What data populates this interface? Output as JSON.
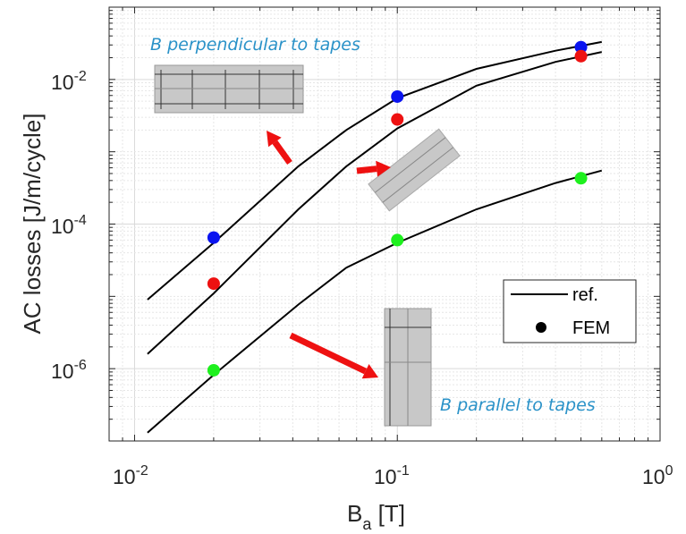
{
  "chart_data": {
    "type": "line",
    "xscale": "log",
    "yscale": "log",
    "xlim": [
      0.008,
      1
    ],
    "ylim": [
      1e-07,
      0.1
    ],
    "grid": true,
    "xlabel": "B_a [T]",
    "xlabel_main": "B",
    "xlabel_sub": "a",
    "xlabel_unit": " [T]",
    "ylabel": "AC losses [J/m/cycle]",
    "x_ticks": [
      {
        "base": "10",
        "exp": "-2",
        "value": 0.01
      },
      {
        "base": "10",
        "exp": "-1",
        "value": 0.1
      },
      {
        "base": "10",
        "exp": "0",
        "value": 1
      }
    ],
    "y_ticks": [
      {
        "base": "10",
        "exp": "-6",
        "value": 1e-06
      },
      {
        "base": "10",
        "exp": "-4",
        "value": 0.0001
      },
      {
        "base": "10",
        "exp": "-2",
        "value": 0.01
      }
    ],
    "ref_lines": [
      {
        "color": "#000000",
        "points": [
          [
            0.0112,
            9e-06
          ],
          [
            0.02,
            5.5e-05
          ],
          [
            0.042,
            0.00063
          ],
          [
            0.064,
            0.002
          ],
          [
            0.1,
            0.0055
          ],
          [
            0.2,
            0.014
          ],
          [
            0.4,
            0.025
          ],
          [
            0.6,
            0.033
          ]
        ]
      },
      {
        "color": "#000000",
        "points": [
          [
            0.0112,
            1.6e-06
          ],
          [
            0.02,
            1.1e-05
          ],
          [
            0.042,
            0.00016
          ],
          [
            0.064,
            0.00063
          ],
          [
            0.1,
            0.0021
          ],
          [
            0.2,
            0.0082
          ],
          [
            0.4,
            0.0175
          ],
          [
            0.6,
            0.024
          ]
        ]
      },
      {
        "color": "#000000",
        "points": [
          [
            0.0112,
            1.3e-07
          ],
          [
            0.02,
            8.2e-07
          ],
          [
            0.042,
            7.7e-06
          ],
          [
            0.064,
            2.5e-05
          ],
          [
            0.1,
            5.5e-05
          ],
          [
            0.2,
            0.00016
          ],
          [
            0.4,
            0.00037
          ],
          [
            0.6,
            0.00055
          ]
        ]
      }
    ],
    "fem_points": [
      {
        "color": "#0a14f0",
        "points": [
          [
            0.02,
            6.5e-05
          ],
          [
            0.1,
            0.0058
          ],
          [
            0.5,
            0.028
          ]
        ]
      },
      {
        "color": "#ee1111",
        "points": [
          [
            0.02,
            1.5e-05
          ],
          [
            0.1,
            0.0028
          ],
          [
            0.5,
            0.021
          ]
        ]
      },
      {
        "color": "#1ef01e",
        "points": [
          [
            0.02,
            9.5e-07
          ],
          [
            0.1,
            6e-05
          ],
          [
            0.5,
            0.00043
          ]
        ]
      }
    ],
    "legend": [
      {
        "label": "ref.",
        "kind": "line"
      },
      {
        "label": "FEM",
        "kind": "marker"
      }
    ],
    "legend_position": "lower-right",
    "annotations": [
      {
        "text": "B perpendicular to tapes"
      },
      {
        "text": "B parallel to tapes"
      }
    ],
    "colors": {
      "arrow": "#ee1111",
      "inset_fill": "#c8c8c8",
      "annotation": "#2a92c8"
    }
  }
}
